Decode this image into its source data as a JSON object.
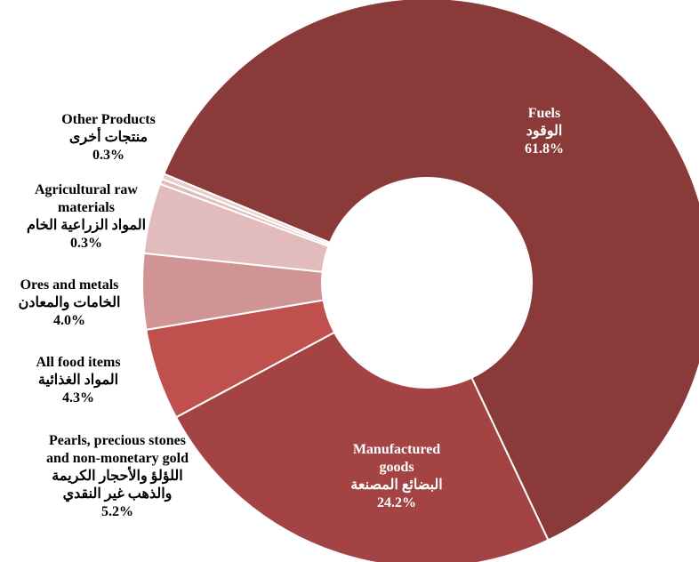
{
  "chart_data": {
    "type": "pie",
    "donut": true,
    "slices": [
      {
        "label_en": "Fuels",
        "label_ar": "الوقود",
        "value": 61.8,
        "value_label": "61.8%",
        "color": "#8B3A3A"
      },
      {
        "label_en": "Manufactured goods",
        "label_ar": "البضائع المصنعة",
        "value": 24.2,
        "value_label": "24.2%",
        "color": "#A34343"
      },
      {
        "label_en": "Pearls, precious stones and non-monetary gold",
        "label_ar": "اللؤلؤ والأحجار الكريمة والذهب غير النقدي",
        "value": 5.2,
        "value_label": "5.2%",
        "color": "#C0504D"
      },
      {
        "label_en": "All food items",
        "label_ar": "المواد الغذائية",
        "value": 4.3,
        "value_label": "4.3%",
        "color": "#D09494"
      },
      {
        "label_en": "Ores and metals",
        "label_ar": "الخامات والمعادن",
        "value": 4.0,
        "value_label": "4.0%",
        "color": "#E2BCBC"
      },
      {
        "label_en": "Agricultural raw materials",
        "label_ar": "المواد الزراعية الخام",
        "value": 0.3,
        "value_label": "0.3%",
        "color": "#DDBEBE"
      },
      {
        "label_en": "Other Products",
        "label_ar": "منتجات أخرى",
        "value": 0.3,
        "value_label": "0.3%",
        "color": "#E8CFCF"
      }
    ],
    "title": "",
    "legend": "none"
  }
}
